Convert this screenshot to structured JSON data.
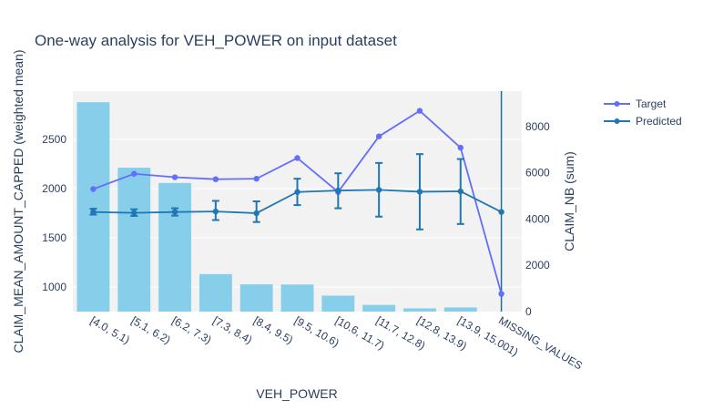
{
  "chart_data": {
    "type": "bar",
    "title": "One-way analysis for VEH_POWER on input dataset",
    "xlabel": "VEH_POWER",
    "ylabel": "CLAIM_MEAN_AMOUNT_CAPPED (weighted mean)",
    "y2label": "CLAIM_NB (sum)",
    "categories": [
      "[4.0, 5.1)",
      "[5.1, 6.2)",
      "[6.2, 7.3)",
      "[7.3, 8.4)",
      "[8.4, 9.5)",
      "[9.5, 10.6)",
      "[10.6, 11.7)",
      "[11.7, 12.8)",
      "[12.8, 13.9)",
      "[13.9, 15.001)",
      "MISSING_VALUES"
    ],
    "ylim": [
      750,
      2990
    ],
    "y2lim": [
      0,
      9530
    ],
    "yticks": [
      1000,
      1500,
      2000,
      2500
    ],
    "y2ticks": [
      0,
      2000,
      4000,
      6000,
      8000
    ],
    "bars": {
      "axis": "y2",
      "color": "#87ceeb",
      "values": [
        9050,
        6220,
        5560,
        1620,
        1180,
        1170,
        690,
        290,
        140,
        180,
        null
      ]
    },
    "series": [
      {
        "name": "Target",
        "axis": "y",
        "color": "#636efa",
        "values": [
          1995,
          2150,
          2115,
          2095,
          2100,
          2310,
          1965,
          2530,
          2790,
          2415,
          930
        ]
      },
      {
        "name": "Predicted",
        "axis": "y",
        "color": "#1f77b4",
        "values": [
          1762,
          1753,
          1762,
          1767,
          1750,
          1965,
          1980,
          1987,
          1968,
          1972,
          1762
        ],
        "error_low": [
          1735,
          1722,
          1725,
          1680,
          1660,
          1832,
          1800,
          1715,
          1585,
          1640,
          null
        ],
        "error_high": [
          1795,
          1790,
          1800,
          1875,
          1870,
          2100,
          2155,
          2260,
          2350,
          2300,
          null
        ]
      }
    ],
    "annotations": [
      {
        "type": "vline",
        "category": "MISSING_VALUES",
        "color": "#1f6f99"
      }
    ],
    "legend": {
      "position": "top-right",
      "entries": [
        "Target",
        "Predicted"
      ]
    },
    "grid": true,
    "background": "#f2f2f2"
  }
}
